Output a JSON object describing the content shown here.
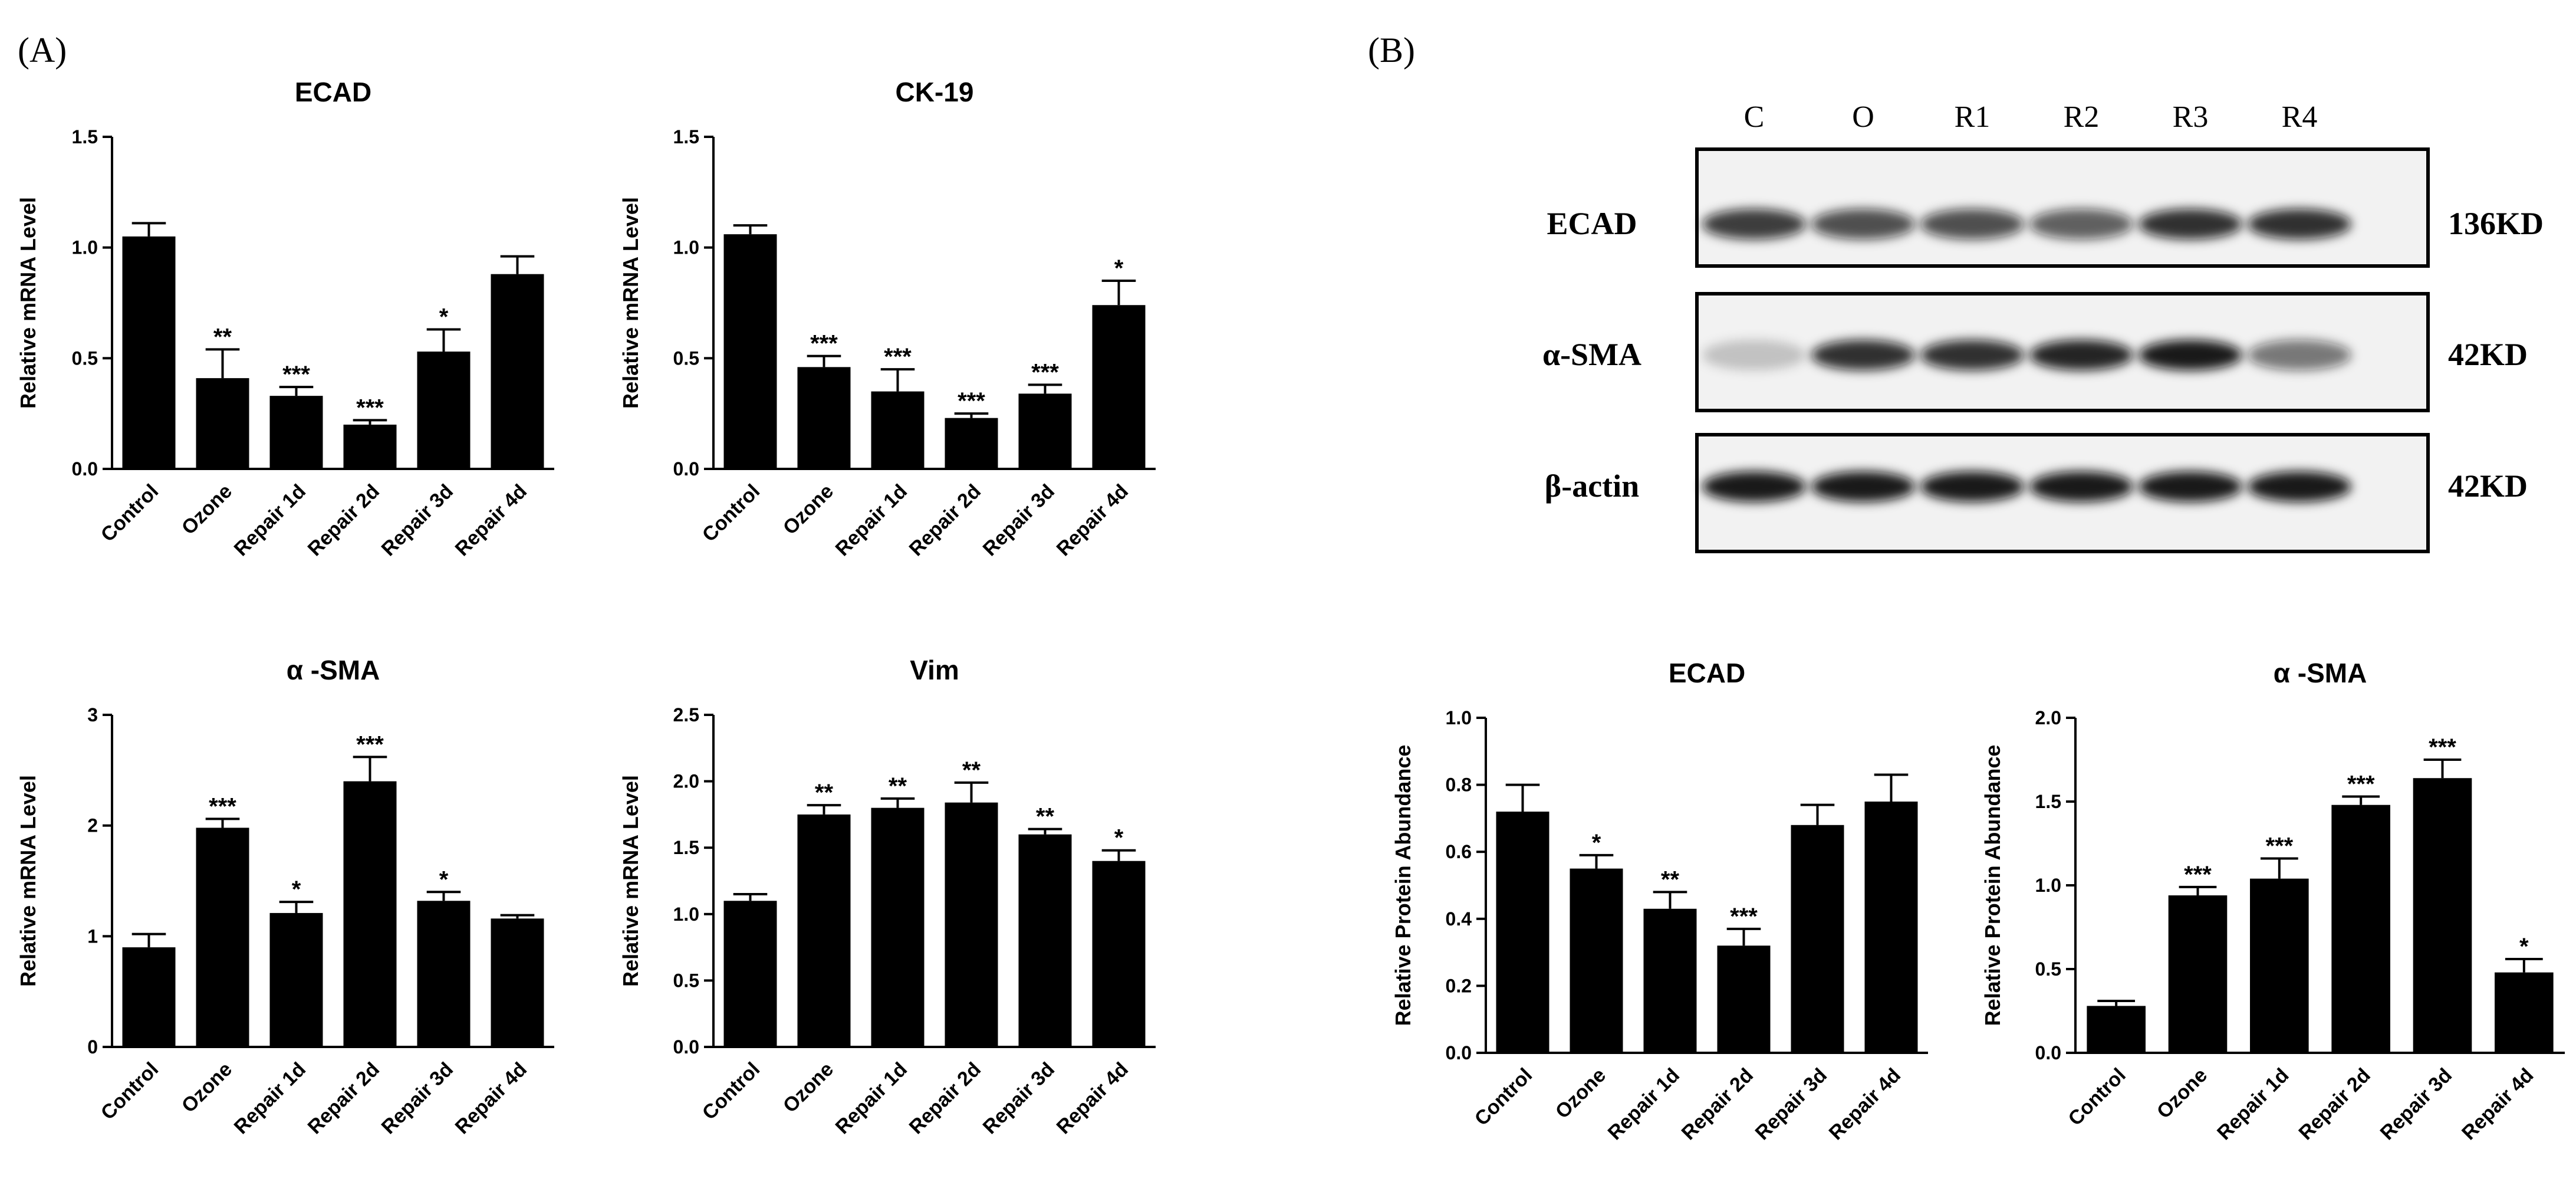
{
  "panel_labels": {
    "a": "(A)",
    "b": "(B)"
  },
  "categories": [
    "Control",
    "Ozone",
    "Repair 1d",
    "Repair 2d",
    "Repair 3d",
    "Repair 4d"
  ],
  "chart_data": [
    {
      "id": "c1",
      "type": "bar",
      "title": "ECAD",
      "ylabel": "Relative mRNA Level",
      "categories": [
        "Control",
        "Ozone",
        "Repair 1d",
        "Repair 2d",
        "Repair 3d",
        "Repair 4d"
      ],
      "values": [
        1.05,
        0.41,
        0.33,
        0.2,
        0.53,
        0.88
      ],
      "errors": [
        0.06,
        0.13,
        0.04,
        0.02,
        0.1,
        0.08
      ],
      "significance": [
        "",
        "**",
        "***",
        "***",
        "*",
        ""
      ],
      "ylim": [
        0,
        1.5
      ],
      "yticks": [
        0.0,
        0.5,
        1.0,
        1.5
      ],
      "ytick_labels": [
        "0.0",
        "0.5",
        "1.0",
        "1.5"
      ]
    },
    {
      "id": "c2",
      "type": "bar",
      "title": "CK-19",
      "ylabel": "Relative mRNA Level",
      "categories": [
        "Control",
        "Ozone",
        "Repair 1d",
        "Repair 2d",
        "Repair 3d",
        "Repair 4d"
      ],
      "values": [
        1.06,
        0.46,
        0.35,
        0.23,
        0.34,
        0.74
      ],
      "errors": [
        0.04,
        0.05,
        0.1,
        0.02,
        0.04,
        0.11
      ],
      "significance": [
        "",
        "***",
        "***",
        "***",
        "***",
        "*"
      ],
      "ylim": [
        0,
        1.5
      ],
      "yticks": [
        0.0,
        0.5,
        1.0,
        1.5
      ],
      "ytick_labels": [
        "0.0",
        "0.5",
        "1.0",
        "1.5"
      ]
    },
    {
      "id": "c3",
      "type": "bar",
      "title": "α -SMA",
      "ylabel": "Relative mRNA Level",
      "categories": [
        "Control",
        "Ozone",
        "Repair 1d",
        "Repair 2d",
        "Repair 3d",
        "Repair 4d"
      ],
      "values": [
        0.9,
        1.98,
        1.21,
        2.4,
        1.32,
        1.16
      ],
      "errors": [
        0.12,
        0.08,
        0.1,
        0.22,
        0.08,
        0.03
      ],
      "significance": [
        "",
        "***",
        "*",
        "***",
        "*",
        ""
      ],
      "ylim": [
        0,
        3
      ],
      "yticks": [
        0,
        1,
        2,
        3
      ],
      "ytick_labels": [
        "0",
        "1",
        "2",
        "3"
      ]
    },
    {
      "id": "c4",
      "type": "bar",
      "title": "Vim",
      "ylabel": "Relative mRNA Level",
      "categories": [
        "Control",
        "Ozone",
        "Repair 1d",
        "Repair 2d",
        "Repair 3d",
        "Repair 4d"
      ],
      "values": [
        1.1,
        1.75,
        1.8,
        1.84,
        1.6,
        1.4
      ],
      "errors": [
        0.05,
        0.07,
        0.07,
        0.15,
        0.04,
        0.08
      ],
      "significance": [
        "",
        "**",
        "**",
        "**",
        "**",
        "*"
      ],
      "ylim": [
        0,
        2.5
      ],
      "yticks": [
        0.0,
        0.5,
        1.0,
        1.5,
        2.0,
        2.5
      ],
      "ytick_labels": [
        "0.0",
        "0.5",
        "1.0",
        "1.5",
        "2.0",
        "2.5"
      ]
    },
    {
      "id": "c5",
      "type": "bar",
      "title": "ECAD",
      "ylabel": "Relative Protein Abundance",
      "categories": [
        "Control",
        "Ozone",
        "Repair 1d",
        "Repair 2d",
        "Repair 3d",
        "Repair 4d"
      ],
      "values": [
        0.72,
        0.55,
        0.43,
        0.32,
        0.68,
        0.75
      ],
      "errors": [
        0.08,
        0.04,
        0.05,
        0.05,
        0.06,
        0.08
      ],
      "significance": [
        "",
        "*",
        "**",
        "***",
        "",
        ""
      ],
      "ylim": [
        0,
        1.0
      ],
      "yticks": [
        0.0,
        0.2,
        0.4,
        0.6,
        0.8,
        1.0
      ],
      "ytick_labels": [
        "0.0",
        "0.2",
        "0.4",
        "0.6",
        "0.8",
        "1.0"
      ]
    },
    {
      "id": "c6",
      "type": "bar",
      "title": "α -SMA",
      "ylabel": "Relative Protein Abundance",
      "categories": [
        "Control",
        "Ozone",
        "Repair 1d",
        "Repair 2d",
        "Repair 3d",
        "Repair 4d"
      ],
      "values": [
        0.28,
        0.94,
        1.04,
        1.48,
        1.64,
        0.48
      ],
      "errors": [
        0.03,
        0.05,
        0.12,
        0.05,
        0.11,
        0.08
      ],
      "significance": [
        "",
        "***",
        "***",
        "***",
        "***",
        "*"
      ],
      "ylim": [
        0,
        2.0
      ],
      "yticks": [
        0.0,
        0.5,
        1.0,
        1.5,
        2.0
      ],
      "ytick_labels": [
        "0.0",
        "0.5",
        "1.0",
        "1.5",
        "2.0"
      ]
    }
  ],
  "western_blot": {
    "lanes": [
      "C",
      "O",
      "R1",
      "R2",
      "R3",
      "R4"
    ],
    "rows": [
      {
        "protein": "ECAD",
        "size": "136KD",
        "intensity": [
          0.8,
          0.72,
          0.72,
          0.65,
          0.85,
          0.85
        ]
      },
      {
        "protein": "α-SMA",
        "size": "42KD",
        "intensity": [
          0.2,
          0.85,
          0.85,
          0.9,
          0.95,
          0.55
        ]
      },
      {
        "protein": "β-actin",
        "size": "42KD",
        "intensity": [
          0.95,
          0.95,
          0.95,
          0.95,
          0.95,
          0.95
        ]
      }
    ]
  }
}
